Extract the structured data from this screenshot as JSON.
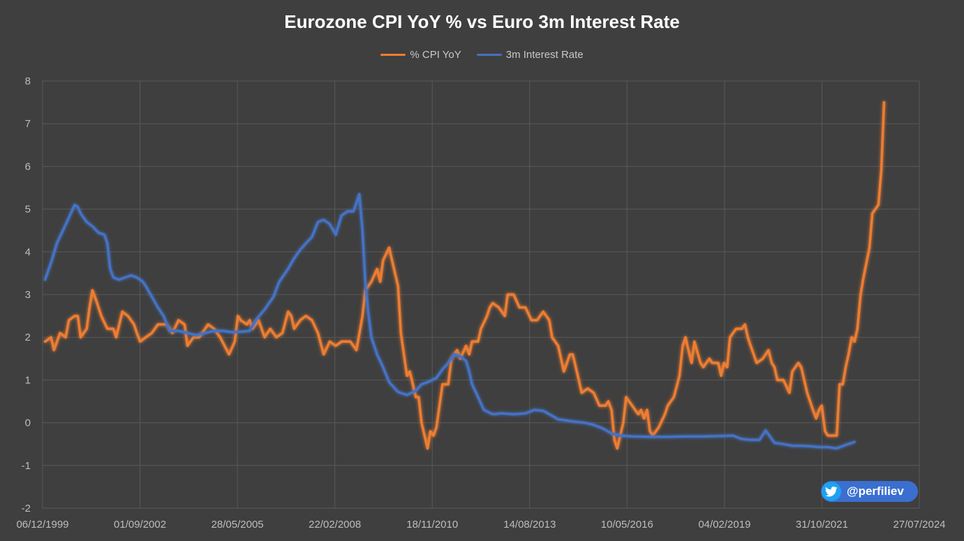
{
  "chart_data": {
    "type": "line",
    "title": "Eurozone CPI YoY % vs Euro 3m Interest Rate",
    "xlabel": "",
    "ylabel": "",
    "x_tick_labels": [
      "06/12/1999",
      "01/09/2002",
      "28/05/2005",
      "22/02/2008",
      "18/11/2010",
      "14/08/2013",
      "10/05/2016",
      "04/02/2019",
      "31/10/2021",
      "27/07/2024"
    ],
    "xlim": [
      1999.93,
      2024.57
    ],
    "ylim": [
      -2,
      8
    ],
    "y_ticks": [
      -2,
      -1,
      0,
      1,
      2,
      3,
      4,
      5,
      6,
      7,
      8
    ],
    "grid": true,
    "legend_position": "top",
    "series": [
      {
        "name": "% CPI YoY",
        "color": "#ed7d31",
        "points": [
          [
            2000.0,
            1.9
          ],
          [
            2000.17,
            2.0
          ],
          [
            2000.25,
            1.7
          ],
          [
            2000.42,
            2.1
          ],
          [
            2000.58,
            2.0
          ],
          [
            2000.67,
            2.4
          ],
          [
            2000.83,
            2.5
          ],
          [
            2000.92,
            2.5
          ],
          [
            2001.0,
            2.0
          ],
          [
            2001.17,
            2.2
          ],
          [
            2001.25,
            2.7
          ],
          [
            2001.33,
            3.1
          ],
          [
            2001.42,
            2.9
          ],
          [
            2001.58,
            2.5
          ],
          [
            2001.75,
            2.2
          ],
          [
            2001.92,
            2.2
          ],
          [
            2002.0,
            2.0
          ],
          [
            2002.17,
            2.6
          ],
          [
            2002.33,
            2.5
          ],
          [
            2002.5,
            2.3
          ],
          [
            2002.58,
            2.1
          ],
          [
            2002.67,
            1.9
          ],
          [
            2002.83,
            2.0
          ],
          [
            2003.0,
            2.1
          ],
          [
            2003.17,
            2.3
          ],
          [
            2003.42,
            2.3
          ],
          [
            2003.58,
            2.1
          ],
          [
            2003.75,
            2.4
          ],
          [
            2003.92,
            2.3
          ],
          [
            2004.0,
            1.8
          ],
          [
            2004.17,
            2.0
          ],
          [
            2004.33,
            2.0
          ],
          [
            2004.5,
            2.2
          ],
          [
            2004.58,
            2.3
          ],
          [
            2004.75,
            2.2
          ],
          [
            2004.92,
            2.0
          ],
          [
            2005.17,
            1.6
          ],
          [
            2005.33,
            1.9
          ],
          [
            2005.42,
            2.5
          ],
          [
            2005.5,
            2.4
          ],
          [
            2005.67,
            2.3
          ],
          [
            2005.75,
            2.4
          ],
          [
            2005.83,
            2.2
          ],
          [
            2006.0,
            2.4
          ],
          [
            2006.17,
            2.0
          ],
          [
            2006.33,
            2.2
          ],
          [
            2006.5,
            2.0
          ],
          [
            2006.67,
            2.1
          ],
          [
            2006.83,
            2.6
          ],
          [
            2006.92,
            2.5
          ],
          [
            2007.0,
            2.2
          ],
          [
            2007.17,
            2.4
          ],
          [
            2007.33,
            2.5
          ],
          [
            2007.5,
            2.4
          ],
          [
            2007.67,
            2.1
          ],
          [
            2007.83,
            1.6
          ],
          [
            2008.0,
            1.9
          ],
          [
            2008.17,
            1.8
          ],
          [
            2008.33,
            1.9
          ],
          [
            2008.58,
            1.9
          ],
          [
            2008.75,
            1.7
          ],
          [
            2008.92,
            2.5
          ],
          [
            2009.0,
            3.1
          ],
          [
            2009.17,
            3.3
          ],
          [
            2009.33,
            3.6
          ],
          [
            2009.42,
            3.3
          ],
          [
            2009.5,
            3.8
          ],
          [
            2009.67,
            4.1
          ],
          [
            2009.75,
            3.8
          ],
          [
            2009.92,
            3.2
          ],
          [
            2010.0,
            2.1
          ],
          [
            2010.17,
            1.1
          ],
          [
            2010.25,
            1.2
          ],
          [
            2010.42,
            0.6
          ],
          [
            2010.5,
            0.6
          ],
          [
            2010.58,
            0.0
          ],
          [
            2010.75,
            -0.6
          ],
          [
            2010.83,
            -0.2
          ],
          [
            2010.92,
            -0.3
          ],
          [
            2011.0,
            -0.1
          ],
          [
            2011.17,
            0.9
          ],
          [
            2011.33,
            0.9
          ],
          [
            2011.42,
            1.5
          ],
          [
            2011.58,
            1.7
          ],
          [
            2011.67,
            1.5
          ],
          [
            2011.83,
            1.8
          ],
          [
            2011.92,
            1.6
          ],
          [
            2012.0,
            1.9
          ],
          [
            2012.17,
            1.9
          ],
          [
            2012.25,
            2.2
          ],
          [
            2012.42,
            2.5
          ],
          [
            2012.5,
            2.7
          ],
          [
            2012.58,
            2.8
          ],
          [
            2012.75,
            2.7
          ],
          [
            2012.92,
            2.5
          ],
          [
            2013.0,
            3.0
          ],
          [
            2013.17,
            3.0
          ],
          [
            2013.33,
            2.7
          ],
          [
            2013.5,
            2.7
          ],
          [
            2013.67,
            2.4
          ],
          [
            2013.83,
            2.4
          ],
          [
            2014.0,
            2.6
          ],
          [
            2014.17,
            2.4
          ],
          [
            2014.25,
            2.0
          ],
          [
            2014.42,
            1.8
          ],
          [
            2014.58,
            1.2
          ],
          [
            2014.75,
            1.6
          ],
          [
            2014.83,
            1.6
          ],
          [
            2015.0,
            1.0
          ],
          [
            2015.08,
            0.7
          ],
          [
            2015.25,
            0.8
          ],
          [
            2015.42,
            0.7
          ],
          [
            2015.58,
            0.4
          ],
          [
            2015.75,
            0.4
          ],
          [
            2015.83,
            0.5
          ],
          [
            2015.92,
            0.3
          ],
          [
            2016.0,
            -0.4
          ],
          [
            2016.08,
            -0.6
          ],
          [
            2016.25,
            0.0
          ],
          [
            2016.33,
            0.6
          ],
          [
            2016.5,
            0.4
          ],
          [
            2016.67,
            0.2
          ],
          [
            2016.75,
            0.3
          ],
          [
            2016.83,
            0.1
          ],
          [
            2016.92,
            0.3
          ],
          [
            2017.0,
            -0.2
          ],
          [
            2017.08,
            -0.3
          ],
          [
            2017.25,
            -0.1
          ],
          [
            2017.42,
            0.2
          ],
          [
            2017.5,
            0.4
          ],
          [
            2017.67,
            0.6
          ],
          [
            2017.83,
            1.1
          ],
          [
            2017.92,
            1.8
          ],
          [
            2018.0,
            2.0
          ],
          [
            2018.08,
            1.7
          ],
          [
            2018.17,
            1.4
          ],
          [
            2018.25,
            1.9
          ],
          [
            2018.42,
            1.4
          ],
          [
            2018.5,
            1.3
          ],
          [
            2018.58,
            1.4
          ],
          [
            2018.67,
            1.5
          ],
          [
            2018.75,
            1.4
          ],
          [
            2018.92,
            1.4
          ],
          [
            2019.0,
            1.1
          ],
          [
            2019.08,
            1.4
          ],
          [
            2019.17,
            1.3
          ],
          [
            2019.25,
            2.0
          ],
          [
            2019.42,
            2.2
          ],
          [
            2019.58,
            2.2
          ],
          [
            2019.67,
            2.3
          ],
          [
            2019.75,
            2.0
          ],
          [
            2019.83,
            1.8
          ],
          [
            2020.0,
            1.4
          ],
          [
            2020.17,
            1.5
          ],
          [
            2020.33,
            1.7
          ],
          [
            2020.42,
            1.4
          ],
          [
            2020.5,
            1.3
          ],
          [
            2020.58,
            1.0
          ],
          [
            2020.75,
            1.0
          ],
          [
            2020.92,
            0.7
          ],
          [
            2021.0,
            1.2
          ],
          [
            2021.17,
            1.4
          ],
          [
            2021.25,
            1.3
          ],
          [
            2021.42,
            0.7
          ],
          [
            2021.58,
            0.3
          ],
          [
            2021.67,
            0.1
          ],
          [
            2021.75,
            0.3
          ],
          [
            2021.83,
            0.4
          ],
          [
            2021.92,
            -0.2
          ],
          [
            2022.0,
            -0.3
          ],
          [
            2022.17,
            -0.3
          ],
          [
            2022.25,
            -0.3
          ],
          [
            2022.33,
            0.9
          ],
          [
            2022.42,
            0.9
          ],
          [
            2022.5,
            1.3
          ],
          [
            2022.58,
            1.6
          ],
          [
            2022.67,
            2.0
          ],
          [
            2022.75,
            1.9
          ],
          [
            2022.83,
            2.2
          ],
          [
            2022.92,
            3.0
          ],
          [
            2023.0,
            3.4
          ],
          [
            2023.17,
            4.1
          ],
          [
            2023.25,
            4.9
          ],
          [
            2023.42,
            5.1
          ],
          [
            2023.5,
            5.9
          ],
          [
            2023.58,
            7.5
          ]
        ]
      },
      {
        "name": "3m Interest Rate",
        "color": "#4472c4",
        "points": [
          [
            2000.0,
            3.35
          ],
          [
            2000.17,
            3.75
          ],
          [
            2000.33,
            4.2
          ],
          [
            2000.5,
            4.5
          ],
          [
            2000.67,
            4.8
          ],
          [
            2000.83,
            5.1
          ],
          [
            2000.92,
            5.05
          ],
          [
            2001.0,
            4.9
          ],
          [
            2001.17,
            4.7
          ],
          [
            2001.33,
            4.6
          ],
          [
            2001.5,
            4.45
          ],
          [
            2001.67,
            4.4
          ],
          [
            2001.75,
            4.2
          ],
          [
            2001.83,
            3.6
          ],
          [
            2001.92,
            3.4
          ],
          [
            2002.08,
            3.35
          ],
          [
            2002.25,
            3.4
          ],
          [
            2002.42,
            3.45
          ],
          [
            2002.58,
            3.4
          ],
          [
            2002.75,
            3.3
          ],
          [
            2002.83,
            3.2
          ],
          [
            2003.0,
            2.95
          ],
          [
            2003.17,
            2.7
          ],
          [
            2003.33,
            2.5
          ],
          [
            2003.5,
            2.15
          ],
          [
            2003.75,
            2.15
          ],
          [
            2004.0,
            2.1
          ],
          [
            2004.25,
            2.05
          ],
          [
            2004.5,
            2.1
          ],
          [
            2004.75,
            2.15
          ],
          [
            2005.0,
            2.15
          ],
          [
            2005.25,
            2.12
          ],
          [
            2005.5,
            2.13
          ],
          [
            2005.75,
            2.15
          ],
          [
            2005.92,
            2.4
          ],
          [
            2006.17,
            2.65
          ],
          [
            2006.42,
            2.95
          ],
          [
            2006.58,
            3.3
          ],
          [
            2006.83,
            3.6
          ],
          [
            2007.0,
            3.85
          ],
          [
            2007.17,
            4.05
          ],
          [
            2007.33,
            4.2
          ],
          [
            2007.5,
            4.35
          ],
          [
            2007.67,
            4.7
          ],
          [
            2007.83,
            4.75
          ],
          [
            2008.0,
            4.65
          ],
          [
            2008.17,
            4.4
          ],
          [
            2008.33,
            4.85
          ],
          [
            2008.5,
            4.95
          ],
          [
            2008.67,
            4.95
          ],
          [
            2008.83,
            5.35
          ],
          [
            2008.92,
            4.5
          ],
          [
            2009.0,
            3.3
          ],
          [
            2009.08,
            2.6
          ],
          [
            2009.17,
            2.0
          ],
          [
            2009.33,
            1.6
          ],
          [
            2009.5,
            1.3
          ],
          [
            2009.67,
            0.95
          ],
          [
            2009.92,
            0.72
          ],
          [
            2010.17,
            0.65
          ],
          [
            2010.42,
            0.75
          ],
          [
            2010.58,
            0.9
          ],
          [
            2010.75,
            0.95
          ],
          [
            2011.0,
            1.05
          ],
          [
            2011.17,
            1.25
          ],
          [
            2011.33,
            1.4
          ],
          [
            2011.5,
            1.6
          ],
          [
            2011.67,
            1.55
          ],
          [
            2011.83,
            1.45
          ],
          [
            2011.92,
            1.2
          ],
          [
            2012.0,
            0.9
          ],
          [
            2012.17,
            0.6
          ],
          [
            2012.33,
            0.3
          ],
          [
            2012.58,
            0.2
          ],
          [
            2012.83,
            0.22
          ],
          [
            2013.17,
            0.2
          ],
          [
            2013.5,
            0.22
          ],
          [
            2013.75,
            0.3
          ],
          [
            2014.0,
            0.28
          ],
          [
            2014.17,
            0.2
          ],
          [
            2014.42,
            0.08
          ],
          [
            2014.67,
            0.05
          ],
          [
            2014.92,
            0.02
          ],
          [
            2015.17,
            0.0
          ],
          [
            2015.42,
            -0.05
          ],
          [
            2015.67,
            -0.13
          ],
          [
            2015.92,
            -0.25
          ],
          [
            2016.17,
            -0.3
          ],
          [
            2016.5,
            -0.32
          ],
          [
            2017.0,
            -0.33
          ],
          [
            2017.5,
            -0.33
          ],
          [
            2018.0,
            -0.32
          ],
          [
            2018.5,
            -0.32
          ],
          [
            2019.0,
            -0.31
          ],
          [
            2019.33,
            -0.3
          ],
          [
            2019.58,
            -0.38
          ],
          [
            2019.83,
            -0.4
          ],
          [
            2020.08,
            -0.4
          ],
          [
            2020.25,
            -0.18
          ],
          [
            2020.5,
            -0.47
          ],
          [
            2020.75,
            -0.5
          ],
          [
            2021.0,
            -0.54
          ],
          [
            2021.25,
            -0.54
          ],
          [
            2021.5,
            -0.55
          ],
          [
            2021.75,
            -0.57
          ],
          [
            2022.0,
            -0.57
          ],
          [
            2022.25,
            -0.6
          ],
          [
            2022.5,
            -0.52
          ],
          [
            2022.75,
            -0.45
          ]
        ]
      }
    ]
  },
  "watermark": {
    "handle": "@perfiliev",
    "icon": "twitter-bird-icon",
    "color": "#3a6fd0"
  }
}
